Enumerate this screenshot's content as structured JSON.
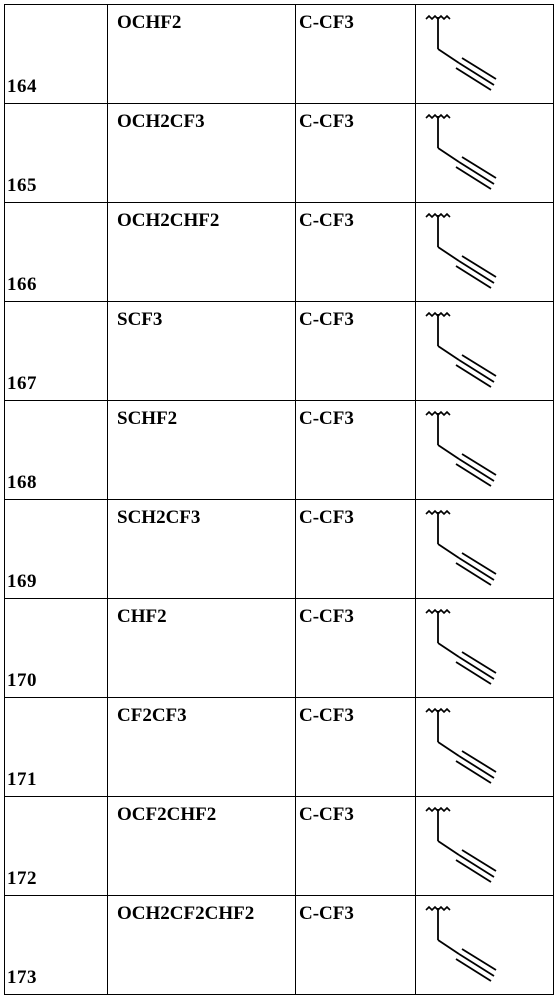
{
  "table": {
    "rows": [
      {
        "number": "164",
        "substituent": "OCHF2",
        "ring": "C-CF3",
        "structure_icon": "butynyl-structure-icon"
      },
      {
        "number": "165",
        "substituent": "OCH2CF3",
        "ring": "C-CF3",
        "structure_icon": "butynyl-structure-icon"
      },
      {
        "number": "166",
        "substituent": "OCH2CHF2",
        "ring": "C-CF3",
        "structure_icon": "butynyl-structure-icon"
      },
      {
        "number": "167",
        "substituent": "SCF3",
        "ring": "C-CF3",
        "structure_icon": "butynyl-structure-icon"
      },
      {
        "number": "168",
        "substituent": "SCHF2",
        "ring": "C-CF3",
        "structure_icon": "butynyl-structure-icon"
      },
      {
        "number": "169",
        "substituent": "SCH2CF3",
        "ring": "C-CF3",
        "structure_icon": "butynyl-structure-icon"
      },
      {
        "number": "170",
        "substituent": "CHF2",
        "ring": "C-CF3",
        "structure_icon": "butynyl-structure-icon"
      },
      {
        "number": "171",
        "substituent": "CF2CF3",
        "ring": "C-CF3",
        "structure_icon": "butynyl-structure-icon"
      },
      {
        "number": "172",
        "substituent": "OCF2CHF2",
        "ring": "C-CF3",
        "structure_icon": "butynyl-structure-icon"
      },
      {
        "number": "173",
        "substituent": "OCH2CF2CHF2",
        "ring": "C-CF3",
        "structure_icon": "butynyl-structure-icon"
      }
    ]
  }
}
